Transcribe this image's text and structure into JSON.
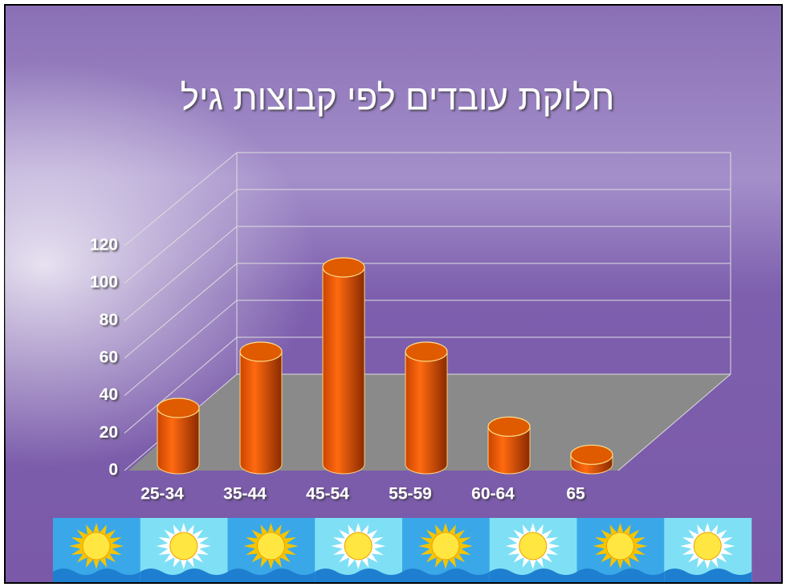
{
  "chart_data": {
    "type": "bar",
    "title": "חלוקת עובדים לפי קבוצות גיל",
    "categories": [
      "25-34",
      "35-44",
      "45-54",
      "55-59",
      "60-64",
      "65"
    ],
    "values": [
      30,
      60,
      105,
      60,
      20,
      5
    ],
    "color": "#e05a00",
    "ylim": [
      0,
      120
    ],
    "yticks": [
      0,
      20,
      40,
      60,
      80,
      100,
      120
    ],
    "grid": true
  }
}
